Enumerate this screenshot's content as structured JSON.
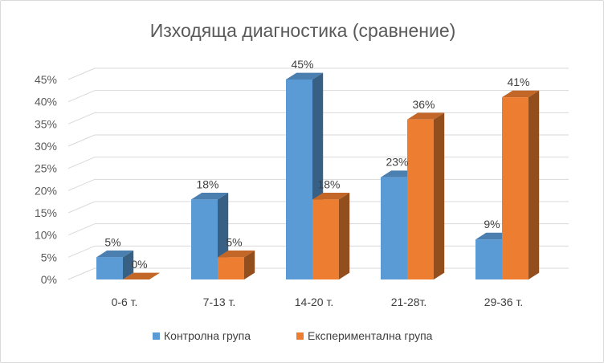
{
  "chart_data": {
    "type": "bar",
    "title": "Изходяща диагностика (сравнение)",
    "xlabel": "",
    "ylabel": "",
    "categories": [
      "0-6 т.",
      "7-13 т.",
      "14-20 т.",
      "21-28т.",
      "29-36 т."
    ],
    "series": [
      {
        "name": "Контролна група",
        "values": [
          5,
          18,
          45,
          23,
          9
        ],
        "labels": [
          "5%",
          "18%",
          "45%",
          "23%",
          "9%"
        ],
        "color": "#5b9bd5"
      },
      {
        "name": "Експериментална група",
        "values": [
          0,
          5,
          18,
          36,
          41
        ],
        "labels": [
          "0%",
          "5%",
          "18%",
          "36%",
          "41%"
        ],
        "color": "#ed7d31"
      }
    ],
    "ylim": [
      0,
      45
    ],
    "yticks": [
      0,
      5,
      10,
      15,
      20,
      25,
      30,
      35,
      40,
      45
    ],
    "yticklabels": [
      "0%",
      "5%",
      "10%",
      "15%",
      "20%",
      "25%",
      "30%",
      "35%",
      "40%",
      "45%"
    ],
    "style": "3d-clustered-column",
    "grid": true,
    "legend": "bottom"
  }
}
